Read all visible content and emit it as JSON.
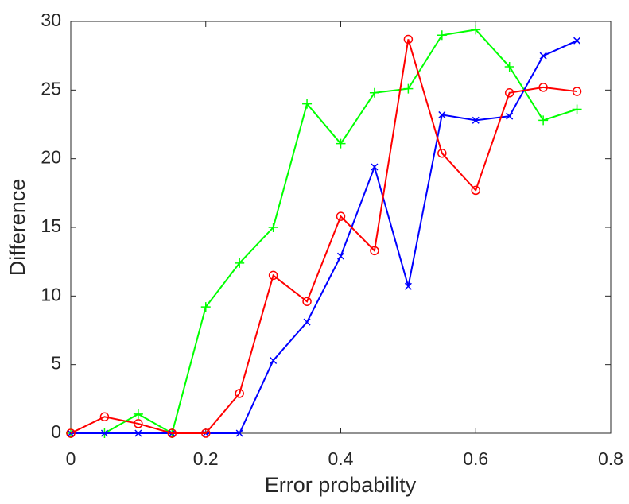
{
  "chart_data": {
    "type": "line",
    "x_label": "Error probability",
    "y_label": "Difference",
    "x": [
      0,
      0.05,
      0.1,
      0.15,
      0.2,
      0.25,
      0.3,
      0.35,
      0.4,
      0.45,
      0.5,
      0.55,
      0.6,
      0.65,
      0.7,
      0.75
    ],
    "series": [
      {
        "color": "#00ff00",
        "marker": "plus",
        "values": [
          0,
          0,
          1.4,
          0,
          9.2,
          12.4,
          15,
          24,
          21.1,
          24.8,
          25.1,
          29,
          29.4,
          26.7,
          22.8,
          23.6
        ]
      },
      {
        "color": "#0000ff",
        "marker": "cross",
        "values": [
          0,
          0,
          0,
          0,
          0,
          0,
          5.3,
          8.1,
          12.9,
          19.4,
          10.7,
          23.2,
          22.8,
          23.1,
          27.5,
          28.6
        ]
      },
      {
        "color": "#ff0000",
        "marker": "circle",
        "values": [
          0,
          1.2,
          0.7,
          0,
          0,
          2.9,
          11.5,
          9.6,
          15.8,
          13.3,
          28.7,
          20.4,
          17.7,
          24.8,
          25.2,
          24.9
        ]
      }
    ],
    "xlim": [
      0,
      0.8
    ],
    "ylim": [
      0,
      30
    ],
    "xticks": [
      0,
      0.2,
      0.4,
      0.6,
      0.8
    ],
    "yticks": [
      0,
      5,
      10,
      15,
      20,
      25,
      30
    ]
  }
}
